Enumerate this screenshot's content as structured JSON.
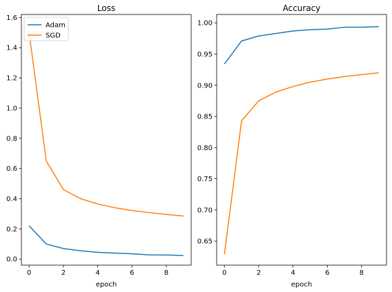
{
  "chart_data": [
    {
      "type": "line",
      "title": "Loss",
      "xlabel": "epoch",
      "ylabel": "",
      "x": [
        0,
        1,
        2,
        3,
        4,
        5,
        6,
        7,
        8,
        9
      ],
      "xlim": [
        -0.45,
        9.45
      ],
      "ylim": [
        -0.04,
        1.62
      ],
      "xticks": [
        0,
        2,
        4,
        6,
        8
      ],
      "yticks": [
        0.0,
        0.2,
        0.4,
        0.6,
        0.8,
        1.0,
        1.2,
        1.4,
        1.6
      ],
      "ytick_decimals": 1,
      "grid": false,
      "legend": "upper-left",
      "series": [
        {
          "name": "Adam",
          "color": "#1f77b4",
          "values": [
            0.22,
            0.1,
            0.07,
            0.055,
            0.045,
            0.04,
            0.035,
            0.028,
            0.027,
            0.024
          ]
        },
        {
          "name": "SGD",
          "color": "#ff7f0e",
          "values": [
            1.5,
            0.65,
            0.46,
            0.4,
            0.365,
            0.34,
            0.322,
            0.308,
            0.296,
            0.285
          ]
        }
      ]
    },
    {
      "type": "line",
      "title": "Accuracy",
      "xlabel": "epoch",
      "ylabel": "",
      "x": [
        0,
        1,
        2,
        3,
        4,
        5,
        6,
        7,
        8,
        9
      ],
      "xlim": [
        -0.45,
        9.45
      ],
      "ylim": [
        0.6115,
        1.0135
      ],
      "xticks": [
        0,
        2,
        4,
        6,
        8
      ],
      "yticks": [
        0.65,
        0.7,
        0.75,
        0.8,
        0.85,
        0.9,
        0.95,
        1.0
      ],
      "ytick_decimals": 2,
      "grid": false,
      "series": [
        {
          "name": "Adam",
          "color": "#1f77b4",
          "values": [
            0.934,
            0.971,
            0.979,
            0.983,
            0.987,
            0.989,
            0.99,
            0.993,
            0.993,
            0.994
          ]
        },
        {
          "name": "SGD",
          "color": "#ff7f0e",
          "values": [
            0.629,
            0.843,
            0.875,
            0.889,
            0.898,
            0.905,
            0.91,
            0.914,
            0.917,
            0.92
          ]
        }
      ]
    }
  ]
}
